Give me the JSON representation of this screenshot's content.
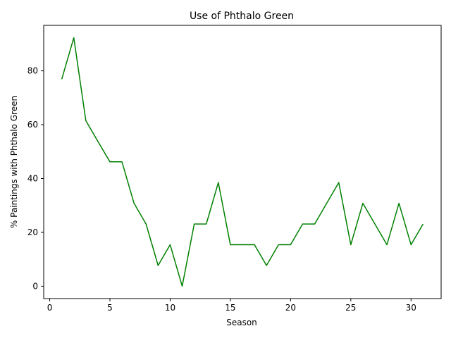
{
  "chart_data": {
    "type": "line",
    "title": "Use of Phthalo Green",
    "xlabel": "Season",
    "ylabel": "% Paintings with Phthalo Green",
    "xlim": [
      -0.5,
      32.5
    ],
    "ylim": [
      -4.6,
      96.9
    ],
    "xticks": [
      0,
      5,
      10,
      15,
      20,
      25,
      30
    ],
    "yticks": [
      0,
      20,
      40,
      60,
      80
    ],
    "grid": false,
    "line_color": "#008000",
    "series": [
      {
        "x": [
          1,
          2,
          3,
          4,
          5,
          6,
          7,
          8,
          9,
          10,
          11,
          12,
          13,
          14,
          15,
          16,
          17,
          18,
          19,
          20,
          21,
          22,
          23,
          24,
          25,
          26,
          27,
          28,
          29,
          30,
          31
        ],
        "values": [
          76.9,
          92.3,
          61.5,
          53.8,
          46.2,
          46.2,
          30.8,
          23.1,
          7.7,
          15.4,
          0,
          23.1,
          23.1,
          38.5,
          15.4,
          15.4,
          15.4,
          7.7,
          15.4,
          15.4,
          23.1,
          23.1,
          30.8,
          38.5,
          15.4,
          30.8,
          23.1,
          15.4,
          30.8,
          15.4,
          23.1
        ]
      }
    ]
  }
}
